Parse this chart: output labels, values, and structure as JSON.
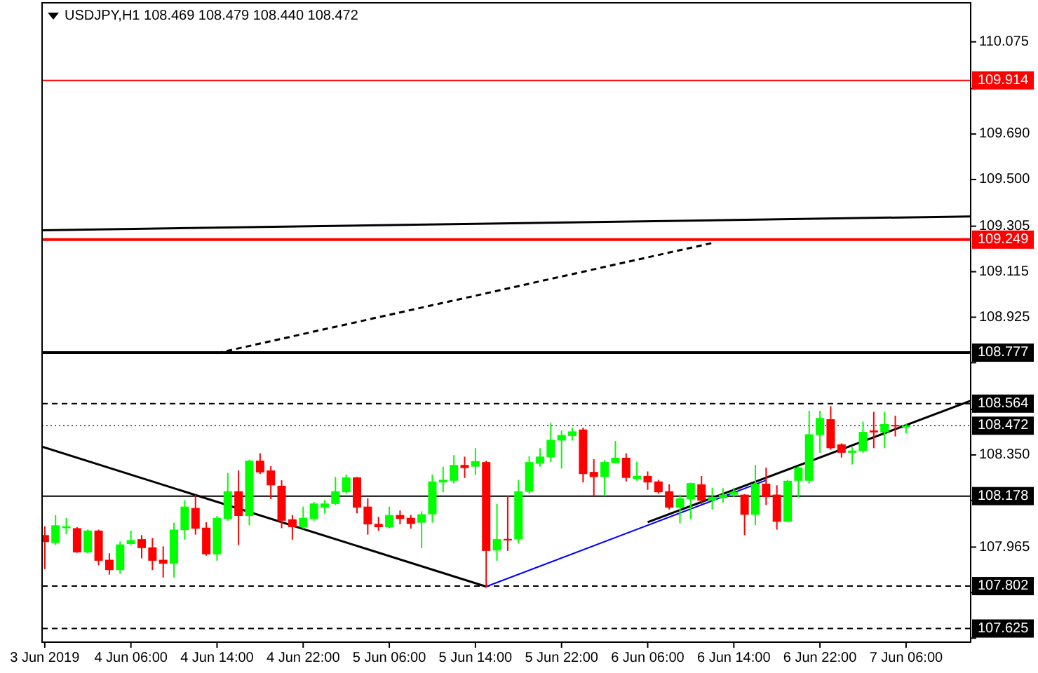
{
  "chart_data": {
    "type": "candlestick",
    "title": "USDJPY,H1 108.469 108.479 108.440 108.472",
    "x": [
      "2019-06-03T22:00",
      "2019-06-03T23:00",
      "2019-06-04T00:00",
      "2019-06-04T01:00",
      "2019-06-04T02:00",
      "2019-06-04T03:00",
      "2019-06-04T04:00",
      "2019-06-04T05:00",
      "2019-06-04T06:00",
      "2019-06-04T07:00",
      "2019-06-04T08:00",
      "2019-06-04T09:00",
      "2019-06-04T10:00",
      "2019-06-04T11:00",
      "2019-06-04T12:00",
      "2019-06-04T13:00",
      "2019-06-04T14:00",
      "2019-06-04T15:00",
      "2019-06-04T16:00",
      "2019-06-04T17:00",
      "2019-06-04T18:00",
      "2019-06-04T19:00",
      "2019-06-04T20:00",
      "2019-06-04T21:00",
      "2019-06-04T22:00",
      "2019-06-04T23:00",
      "2019-06-05T00:00",
      "2019-06-05T01:00",
      "2019-06-05T02:00",
      "2019-06-05T03:00",
      "2019-06-05T04:00",
      "2019-06-05T05:00",
      "2019-06-05T06:00",
      "2019-06-05T07:00",
      "2019-06-05T08:00",
      "2019-06-05T09:00",
      "2019-06-05T10:00",
      "2019-06-05T11:00",
      "2019-06-05T12:00",
      "2019-06-05T13:00",
      "2019-06-05T14:00",
      "2019-06-05T15:00",
      "2019-06-05T16:00",
      "2019-06-05T17:00",
      "2019-06-05T18:00",
      "2019-06-05T19:00",
      "2019-06-05T20:00",
      "2019-06-05T21:00",
      "2019-06-05T22:00",
      "2019-06-05T23:00",
      "2019-06-06T00:00",
      "2019-06-06T01:00",
      "2019-06-06T02:00",
      "2019-06-06T03:00",
      "2019-06-06T04:00",
      "2019-06-06T05:00",
      "2019-06-06T06:00",
      "2019-06-06T07:00",
      "2019-06-06T08:00",
      "2019-06-06T09:00",
      "2019-06-06T10:00",
      "2019-06-06T11:00",
      "2019-06-06T12:00",
      "2019-06-06T13:00",
      "2019-06-06T14:00",
      "2019-06-06T15:00",
      "2019-06-06T16:00",
      "2019-06-06T17:00",
      "2019-06-06T18:00",
      "2019-06-06T19:00",
      "2019-06-06T20:00",
      "2019-06-06T21:00",
      "2019-06-06T22:00",
      "2019-06-06T23:00",
      "2019-06-07T00:00",
      "2019-06-07T01:00",
      "2019-06-07T02:00",
      "2019-06-07T03:00",
      "2019-06-07T04:00",
      "2019-06-07T05:00",
      "2019-06-07T06:00"
    ],
    "ohlc": [
      [
        108.015,
        108.052,
        107.873,
        107.986
      ],
      [
        107.982,
        108.099,
        107.974,
        108.056
      ],
      [
        108.044,
        108.087,
        108.019,
        108.052
      ],
      [
        108.044,
        108.048,
        107.941,
        107.943
      ],
      [
        107.943,
        108.038,
        107.939,
        108.034
      ],
      [
        108.034,
        108.038,
        107.889,
        107.908
      ],
      [
        107.912,
        107.939,
        107.85,
        107.869
      ],
      [
        107.869,
        107.988,
        107.854,
        107.976
      ],
      [
        107.978,
        108.034,
        107.974,
        107.994
      ],
      [
        107.998,
        108.015,
        107.918,
        107.961
      ],
      [
        107.964,
        108.003,
        107.869,
        107.908
      ],
      [
        107.912,
        107.968,
        107.838,
        107.896
      ],
      [
        107.896,
        108.067,
        107.838,
        108.038
      ],
      [
        108.036,
        108.161,
        107.996,
        108.134
      ],
      [
        108.128,
        108.184,
        108.017,
        108.042
      ],
      [
        108.046,
        108.069,
        107.929,
        107.935
      ],
      [
        107.935,
        108.095,
        107.908,
        108.087
      ],
      [
        108.083,
        108.274,
        108.075,
        108.198
      ],
      [
        108.198,
        108.285,
        107.974,
        108.095
      ],
      [
        108.095,
        108.33,
        108.056,
        108.326
      ],
      [
        108.326,
        108.357,
        108.27,
        108.277
      ],
      [
        108.285,
        108.303,
        108.165,
        108.223
      ],
      [
        108.221,
        108.244,
        108.044,
        108.075
      ],
      [
        108.081,
        108.099,
        107.996,
        108.048
      ],
      [
        108.048,
        108.134,
        108.042,
        108.087
      ],
      [
        108.083,
        108.153,
        108.075,
        108.147
      ],
      [
        108.13,
        108.161,
        108.106,
        108.147
      ],
      [
        108.145,
        108.258,
        108.141,
        108.198
      ],
      [
        108.194,
        108.268,
        108.188,
        108.256
      ],
      [
        108.256,
        108.258,
        108.106,
        108.13
      ],
      [
        108.134,
        108.169,
        108.017,
        108.06
      ],
      [
        108.062,
        108.091,
        108.033,
        108.048
      ],
      [
        108.048,
        108.134,
        108.044,
        108.099
      ],
      [
        108.099,
        108.118,
        108.06,
        108.083
      ],
      [
        108.087,
        108.099,
        108.042,
        108.062
      ],
      [
        108.067,
        108.114,
        107.961,
        108.102
      ],
      [
        108.102,
        108.268,
        108.067,
        108.239
      ],
      [
        108.235,
        108.301,
        108.194,
        108.246
      ],
      [
        108.242,
        108.349,
        108.231,
        108.308
      ],
      [
        108.308,
        108.343,
        108.254,
        108.295
      ],
      [
        108.301,
        108.378,
        108.266,
        108.324
      ],
      [
        108.32,
        108.326,
        107.795,
        107.949
      ],
      [
        107.951,
        108.145,
        107.908,
        107.998
      ],
      [
        107.999,
        108.18,
        107.949,
        107.996
      ],
      [
        107.998,
        108.246,
        107.98,
        108.198
      ],
      [
        108.196,
        108.345,
        108.188,
        108.32
      ],
      [
        108.314,
        108.378,
        108.301,
        108.343
      ],
      [
        108.34,
        108.483,
        108.32,
        108.413
      ],
      [
        108.41,
        108.452,
        108.293,
        108.433
      ],
      [
        108.429,
        108.464,
        108.41,
        108.448
      ],
      [
        108.456,
        108.464,
        108.235,
        108.27
      ],
      [
        108.279,
        108.332,
        108.178,
        108.258
      ],
      [
        108.258,
        108.328,
        108.178,
        108.32
      ],
      [
        108.316,
        108.408,
        108.314,
        108.338
      ],
      [
        108.338,
        108.357,
        108.239,
        108.254
      ],
      [
        108.25,
        108.322,
        108.242,
        108.262
      ],
      [
        108.262,
        108.281,
        108.204,
        108.235
      ],
      [
        108.239,
        108.246,
        108.188,
        108.194
      ],
      [
        108.198,
        108.227,
        108.122,
        108.13
      ],
      [
        108.13,
        108.184,
        108.064,
        108.169
      ],
      [
        108.164,
        108.234,
        108.083,
        108.232
      ],
      [
        108.227,
        108.262,
        108.145,
        108.159
      ],
      [
        108.16,
        108.213,
        108.122,
        108.174
      ],
      [
        108.17,
        108.211,
        108.151,
        108.184
      ],
      [
        108.184,
        108.213,
        108.174,
        108.195
      ],
      [
        108.184,
        108.186,
        108.015,
        108.1
      ],
      [
        108.1,
        108.308,
        108.057,
        108.23
      ],
      [
        108.23,
        108.297,
        108.141,
        108.174
      ],
      [
        108.184,
        108.223,
        108.038,
        108.071
      ],
      [
        108.071,
        108.246,
        108.069,
        108.242
      ],
      [
        108.242,
        108.302,
        108.172,
        108.297
      ],
      [
        108.242,
        108.534,
        108.23,
        108.436
      ],
      [
        108.433,
        108.534,
        108.359,
        108.504
      ],
      [
        108.499,
        108.553,
        108.372,
        108.378
      ],
      [
        108.394,
        108.398,
        108.339,
        108.359
      ],
      [
        108.359,
        108.382,
        108.31,
        108.368
      ],
      [
        108.366,
        108.489,
        108.359,
        108.446
      ],
      [
        108.452,
        108.53,
        108.378,
        108.444
      ],
      [
        108.444,
        108.53,
        108.378,
        108.479
      ],
      [
        108.475,
        108.514,
        108.427,
        108.469
      ],
      [
        108.469,
        108.479,
        108.44,
        108.472
      ]
    ],
    "colors": [
      "#ff0000",
      "#00ff00",
      "#00ff00",
      "#ff0000",
      "#00ff00",
      "#ff0000",
      "#ff0000",
      "#00ff00",
      "#00ff00",
      "#ff0000",
      "#ff0000",
      "#ff0000",
      "#00ff00",
      "#00ff00",
      "#ff0000",
      "#ff0000",
      "#00ff00",
      "#00ff00",
      "#ff0000",
      "#00ff00",
      "#ff0000",
      "#ff0000",
      "#ff0000",
      "#ff0000",
      "#00ff00",
      "#00ff00",
      "#00ff00",
      "#00ff00",
      "#00ff00",
      "#ff0000",
      "#ff0000",
      "#ff0000",
      "#00ff00",
      "#ff0000",
      "#ff0000",
      "#00ff00",
      "#00ff00",
      "#00ff00",
      "#00ff00",
      "#ff0000",
      "#00ff00",
      "#ff0000",
      "#00ff00",
      "#ff0000",
      "#00ff00",
      "#00ff00",
      "#00ff00",
      "#00ff00",
      "#00ff00",
      "#00ff00",
      "#ff0000",
      "#ff0000",
      "#00ff00",
      "#00ff00",
      "#ff0000",
      "#00ff00",
      "#ff0000",
      "#ff0000",
      "#ff0000",
      "#00ff00",
      "#00ff00",
      "#ff0000",
      "#00ff00",
      "#00ff00",
      "#00ff00",
      "#ff0000",
      "#00ff00",
      "#ff0000",
      "#ff0000",
      "#00ff00",
      "#00ff00",
      "#00ff00",
      "#00ff00",
      "#ff0000",
      "#ff0000",
      "#00ff00",
      "#00ff00",
      "#ff0000",
      "#00ff00",
      "#ff0000",
      "#00ff00"
    ],
    "series": [
      {
        "type": "line",
        "color": "#000000",
        "line_style": "solid",
        "x": [
          "2019-06-03T21:45",
          "2019-06-05T15:00"
        ],
        "values": [
          108.384,
          107.8
        ]
      },
      {
        "type": "line",
        "color": "#0000ff",
        "line_style": "solid",
        "x": [
          "2019-06-05T15:00",
          "2019-06-06T17:00"
        ],
        "values": [
          107.8,
          108.244
        ]
      },
      {
        "type": "line",
        "color": "#000000",
        "line_style": "solid",
        "x": [
          "2019-06-06T06:00",
          "2019-06-07T12:00"
        ],
        "values": [
          108.069,
          108.576
        ]
      },
      {
        "type": "line",
        "color": "#000000",
        "line_style": "solid",
        "x": [
          "2019-06-03T21:45",
          "2019-06-07T12:00"
        ],
        "values": [
          109.288,
          109.346
        ]
      },
      {
        "type": "line",
        "color": "#000000",
        "line_style": "dashed",
        "x": [
          "2019-06-04T14:00",
          "2019-06-06T12:00"
        ],
        "values": [
          108.775,
          109.235
        ]
      }
    ],
    "ref_lines": [
      {
        "axis": "y",
        "value": 109.914,
        "label": "109.914",
        "color": "#ff0000",
        "line_style": "solid"
      },
      {
        "axis": "y",
        "value": 109.249,
        "label": "109.249",
        "color": "#ff0000",
        "line_style": "solid"
      },
      {
        "axis": "y",
        "value": 108.777,
        "label": "108.777",
        "color": "#000000",
        "line_style": "solid"
      },
      {
        "axis": "y",
        "value": 108.564,
        "label": "108.564",
        "color": "#000000",
        "line_style": "dashed"
      },
      {
        "axis": "y",
        "value": 108.472,
        "label": "108.472",
        "color": "#000000",
        "line_style": "dotted"
      },
      {
        "axis": "y",
        "value": 108.178,
        "label": "108.178",
        "color": "#000000",
        "line_style": "solid"
      },
      {
        "axis": "y",
        "value": 107.802,
        "label": "107.802",
        "color": "#000000",
        "line_style": "dashed"
      },
      {
        "axis": "y",
        "value": 107.625,
        "label": "107.625",
        "color": "#000000",
        "line_style": "dashed"
      }
    ],
    "xlim": [
      "2019-06-03T21:45",
      "2019-06-07T12:00"
    ],
    "xticks": [
      {
        "value": "2019-06-03T22:00",
        "label": "3 Jun 2019"
      },
      {
        "value": "2019-06-04T06:00",
        "label": "4 Jun 06:00"
      },
      {
        "value": "2019-06-04T14:00",
        "label": "4 Jun 14:00"
      },
      {
        "value": "2019-06-04T22:00",
        "label": "4 Jun 22:00"
      },
      {
        "value": "2019-06-05T06:00",
        "label": "5 Jun 06:00"
      },
      {
        "value": "2019-06-05T14:00",
        "label": "5 Jun 14:00"
      },
      {
        "value": "2019-06-05T22:00",
        "label": "5 Jun 22:00"
      },
      {
        "value": "2019-06-06T06:00",
        "label": "6 Jun 06:00"
      },
      {
        "value": "2019-06-06T14:00",
        "label": "6 Jun 14:00"
      },
      {
        "value": "2019-06-06T22:00",
        "label": "6 Jun 22:00"
      },
      {
        "value": "2019-06-07T06:00",
        "label": "7 Jun 06:00"
      }
    ],
    "ylim": [
      107.568,
      110.238
    ],
    "yticks": [
      110.075,
      {
        "value": 109.88,
        "label": null
      },
      {
        "value": 109.69,
        "label": "109.690"
      },
      {
        "value": 109.5,
        "label": "109.500"
      },
      109.305,
      109.115,
      108.925,
      {
        "value": 108.735,
        "label": null
      },
      {
        "value": 108.54,
        "label": null
      },
      {
        "value": 108.35,
        "label": "108.350"
      },
      {
        "value": 108.16,
        "label": null
      },
      107.965,
      {
        "value": 107.775,
        "label": null
      },
      {
        "value": 107.585,
        "label": null
      }
    ]
  }
}
